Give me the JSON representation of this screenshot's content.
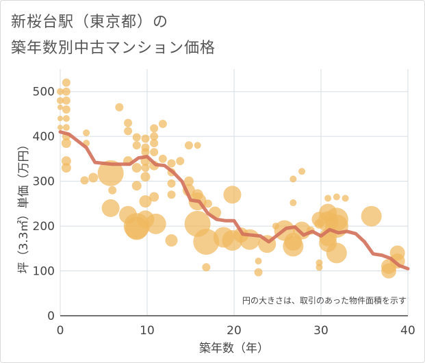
{
  "title_line1": "新桜台駅（東京都）の",
  "title_line2": "築年数別中古マンション価格",
  "chart_data": {
    "type": "scatter",
    "xlabel": "築年数（年）",
    "ylabel": "坪（3.3㎡）単価（万円）",
    "xlim": [
      0,
      40
    ],
    "ylim": [
      0,
      550
    ],
    "x_ticks": [
      0,
      10,
      20,
      30,
      40
    ],
    "y_ticks": [
      0,
      100,
      200,
      300,
      400,
      500
    ],
    "grid": true,
    "annotation": "円の大きさは、取引のあった物件面積を示す",
    "colors": {
      "bubble": "#f0b85e",
      "line": "#d2705a"
    },
    "bubbles": [
      {
        "x": 0,
        "y": 500,
        "s": 5
      },
      {
        "x": 0,
        "y": 480,
        "s": 5
      },
      {
        "x": 0,
        "y": 465,
        "s": 4
      },
      {
        "x": 0,
        "y": 440,
        "s": 4
      },
      {
        "x": 0,
        "y": 420,
        "s": 4
      },
      {
        "x": 0.7,
        "y": 520,
        "s": 6
      },
      {
        "x": 0.7,
        "y": 500,
        "s": 6
      },
      {
        "x": 0.7,
        "y": 480,
        "s": 6
      },
      {
        "x": 0.7,
        "y": 460,
        "s": 6
      },
      {
        "x": 0.7,
        "y": 440,
        "s": 5
      },
      {
        "x": 0.7,
        "y": 420,
        "s": 5
      },
      {
        "x": 0.7,
        "y": 400,
        "s": 6
      },
      {
        "x": 0.7,
        "y": 385,
        "s": 7
      },
      {
        "x": 0.7,
        "y": 345,
        "s": 7
      },
      {
        "x": 0.7,
        "y": 330,
        "s": 7
      },
      {
        "x": 3,
        "y": 408,
        "s": 5
      },
      {
        "x": 3,
        "y": 385,
        "s": 5
      },
      {
        "x": 2.8,
        "y": 302,
        "s": 6
      },
      {
        "x": 3.8,
        "y": 308,
        "s": 7
      },
      {
        "x": 5.8,
        "y": 318,
        "s": 19
      },
      {
        "x": 6,
        "y": 280,
        "s": 6
      },
      {
        "x": 5.8,
        "y": 240,
        "s": 13
      },
      {
        "x": 6.8,
        "y": 465,
        "s": 6
      },
      {
        "x": 7.8,
        "y": 430,
        "s": 6
      },
      {
        "x": 7.8,
        "y": 412,
        "s": 6
      },
      {
        "x": 7.8,
        "y": 345,
        "s": 7
      },
      {
        "x": 7.8,
        "y": 225,
        "s": 13
      },
      {
        "x": 8.8,
        "y": 398,
        "s": 6
      },
      {
        "x": 8.8,
        "y": 380,
        "s": 6
      },
      {
        "x": 8.8,
        "y": 330,
        "s": 7
      },
      {
        "x": 8.8,
        "y": 290,
        "s": 7
      },
      {
        "x": 8.8,
        "y": 200,
        "s": 19
      },
      {
        "x": 8.8,
        "y": 195,
        "s": 17
      },
      {
        "x": 9.8,
        "y": 395,
        "s": 6
      },
      {
        "x": 9.8,
        "y": 375,
        "s": 6
      },
      {
        "x": 9.8,
        "y": 365,
        "s": 6
      },
      {
        "x": 9.8,
        "y": 345,
        "s": 7
      },
      {
        "x": 9.8,
        "y": 330,
        "s": 6
      },
      {
        "x": 9.8,
        "y": 310,
        "s": 7
      },
      {
        "x": 9.8,
        "y": 255,
        "s": 9
      },
      {
        "x": 9.8,
        "y": 215,
        "s": 13
      },
      {
        "x": 10.8,
        "y": 418,
        "s": 6
      },
      {
        "x": 10.8,
        "y": 400,
        "s": 6
      },
      {
        "x": 10.8,
        "y": 385,
        "s": 6
      },
      {
        "x": 10.8,
        "y": 365,
        "s": 6
      },
      {
        "x": 10.8,
        "y": 335,
        "s": 7
      },
      {
        "x": 10.8,
        "y": 265,
        "s": 7
      },
      {
        "x": 11,
        "y": 205,
        "s": 15
      },
      {
        "x": 11.8,
        "y": 428,
        "s": 6
      },
      {
        "x": 11.8,
        "y": 350,
        "s": 6
      },
      {
        "x": 12.8,
        "y": 340,
        "s": 6
      },
      {
        "x": 12.8,
        "y": 320,
        "s": 6
      },
      {
        "x": 12.8,
        "y": 295,
        "s": 6
      },
      {
        "x": 12.8,
        "y": 270,
        "s": 6
      },
      {
        "x": 12.8,
        "y": 168,
        "s": 9
      },
      {
        "x": 13.8,
        "y": 345,
        "s": 6
      },
      {
        "x": 14.8,
        "y": 380,
        "s": 6
      },
      {
        "x": 14.8,
        "y": 300,
        "s": 7
      },
      {
        "x": 15.8,
        "y": 380,
        "s": 5
      },
      {
        "x": 14.8,
        "y": 280,
        "s": 9
      },
      {
        "x": 15.8,
        "y": 270,
        "s": 8
      },
      {
        "x": 15.8,
        "y": 255,
        "s": 13
      },
      {
        "x": 15.8,
        "y": 205,
        "s": 19
      },
      {
        "x": 16.8,
        "y": 165,
        "s": 19
      },
      {
        "x": 16.8,
        "y": 108,
        "s": 6
      },
      {
        "x": 17,
        "y": 250,
        "s": 6
      },
      {
        "x": 17.8,
        "y": 230,
        "s": 9
      },
      {
        "x": 18.8,
        "y": 175,
        "s": 15
      },
      {
        "x": 19.8,
        "y": 270,
        "s": 13
      },
      {
        "x": 19.8,
        "y": 168,
        "s": 15
      },
      {
        "x": 20.8,
        "y": 180,
        "s": 11
      },
      {
        "x": 21.8,
        "y": 170,
        "s": 15
      },
      {
        "x": 22.8,
        "y": 122,
        "s": 5
      },
      {
        "x": 22.8,
        "y": 97,
        "s": 6
      },
      {
        "x": 23.8,
        "y": 160,
        "s": 13
      },
      {
        "x": 24.8,
        "y": 200,
        "s": 5
      },
      {
        "x": 25.8,
        "y": 190,
        "s": 15
      },
      {
        "x": 26.8,
        "y": 305,
        "s": 5
      },
      {
        "x": 26.8,
        "y": 252,
        "s": 5
      },
      {
        "x": 26.8,
        "y": 165,
        "s": 13
      },
      {
        "x": 26.8,
        "y": 155,
        "s": 15
      },
      {
        "x": 27.8,
        "y": 322,
        "s": 5
      },
      {
        "x": 27.8,
        "y": 190,
        "s": 13
      },
      {
        "x": 28.8,
        "y": 190,
        "s": 6
      },
      {
        "x": 29.8,
        "y": 215,
        "s": 11
      },
      {
        "x": 29.8,
        "y": 205,
        "s": 7
      },
      {
        "x": 29.8,
        "y": 118,
        "s": 5
      },
      {
        "x": 29.8,
        "y": 108,
        "s": 5
      },
      {
        "x": 30.8,
        "y": 262,
        "s": 5
      },
      {
        "x": 30.8,
        "y": 230,
        "s": 13
      },
      {
        "x": 30.8,
        "y": 210,
        "s": 15
      },
      {
        "x": 30.8,
        "y": 175,
        "s": 13
      },
      {
        "x": 30.8,
        "y": 162,
        "s": 13
      },
      {
        "x": 31.8,
        "y": 265,
        "s": 5
      },
      {
        "x": 31.8,
        "y": 215,
        "s": 17
      },
      {
        "x": 31.8,
        "y": 200,
        "s": 17
      },
      {
        "x": 31.8,
        "y": 140,
        "s": 15
      },
      {
        "x": 32.8,
        "y": 262,
        "s": 5
      },
      {
        "x": 35.8,
        "y": 222,
        "s": 15
      },
      {
        "x": 37.8,
        "y": 110,
        "s": 11
      },
      {
        "x": 37.8,
        "y": 100,
        "s": 11
      },
      {
        "x": 38.8,
        "y": 140,
        "s": 11
      },
      {
        "x": 38.8,
        "y": 122,
        "s": 11
      }
    ],
    "trend": {
      "x": [
        0,
        1,
        2,
        3,
        4,
        5,
        6,
        7,
        8,
        9,
        10,
        11,
        12,
        13,
        14,
        15,
        16,
        17,
        18,
        19,
        20,
        21,
        22,
        23,
        24,
        25,
        26,
        27,
        28,
        29,
        30,
        31,
        32,
        33,
        34,
        35,
        36,
        37,
        38,
        39,
        40
      ],
      "y": [
        410,
        405,
        390,
        375,
        342,
        340,
        338,
        338,
        338,
        352,
        355,
        337,
        335,
        320,
        300,
        258,
        255,
        228,
        215,
        212,
        212,
        182,
        180,
        178,
        165,
        180,
        195,
        198,
        180,
        188,
        178,
        192,
        185,
        188,
        183,
        165,
        138,
        135,
        128,
        112,
        105
      ]
    }
  }
}
